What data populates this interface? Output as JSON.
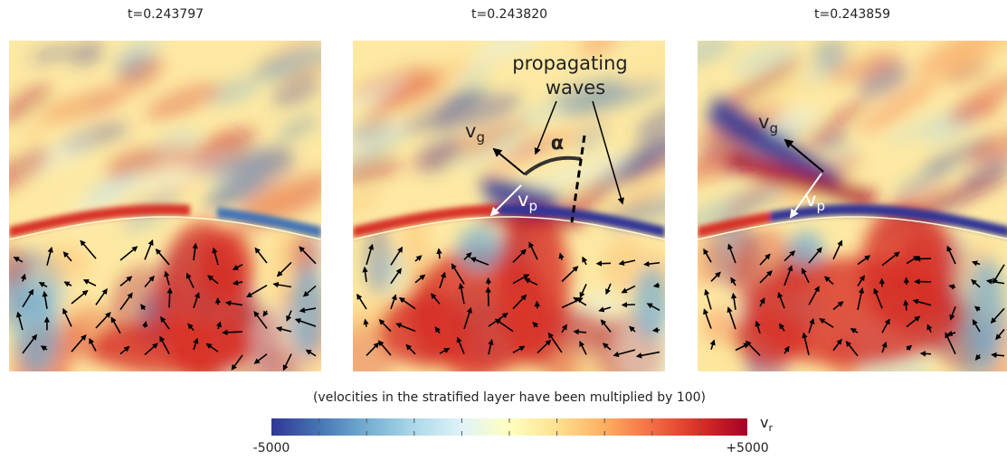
{
  "panels": [
    {
      "title": "t=0.243797"
    },
    {
      "title": "t=0.243820",
      "annotations": {
        "waves_line1": "propagating",
        "waves_line2": "waves",
        "vg": {
          "base": "v",
          "sub": "g"
        },
        "vp": {
          "base": "v",
          "sub": "p"
        },
        "angle": "α"
      }
    },
    {
      "title": "t=0.243859",
      "annotations": {
        "vg": {
          "base": "v",
          "sub": "g"
        },
        "vp": {
          "base": "v",
          "sub": "p"
        }
      }
    }
  ],
  "note": "(velocities in the stratified layer have been multiplied by 100)",
  "colorbar": {
    "label": {
      "base": "v",
      "sub": "r"
    },
    "min_label": "-5000",
    "max_label": "+5000"
  }
}
